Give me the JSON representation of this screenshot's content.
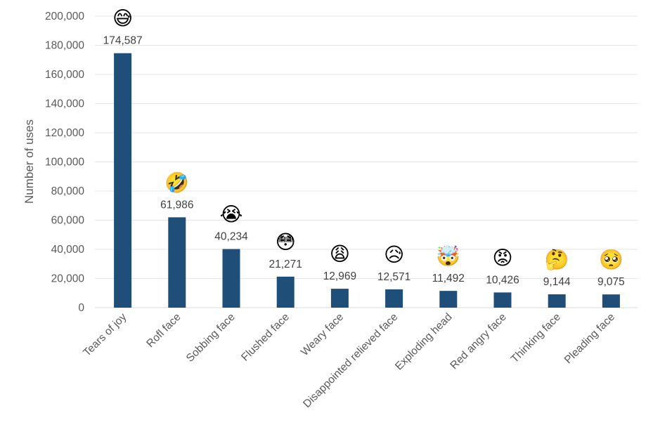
{
  "chart_data": {
    "type": "bar",
    "title": "",
    "xlabel": "",
    "ylabel": "Number of uses",
    "ylim": [
      0,
      200000
    ],
    "yticks": [
      0,
      20000,
      40000,
      60000,
      80000,
      100000,
      120000,
      140000,
      160000,
      180000,
      200000
    ],
    "ytick_labels": [
      "0",
      "20,000",
      "40,000",
      "60,000",
      "80,000",
      "100,000",
      "120,000",
      "140,000",
      "160,000",
      "180,000",
      "200,000"
    ],
    "grid": true,
    "bar_color": "#1f4e79",
    "categories": [
      "Tears of joy",
      "Rofl face",
      "Sobbing face",
      "Flushed face",
      "Weary face",
      "Disappointed relieved face",
      "Exploding head",
      "Red angry face",
      "Thinking face",
      "Pleading face"
    ],
    "values": [
      174587,
      61986,
      40234,
      21271,
      12969,
      12571,
      11492,
      10426,
      9144,
      9075
    ],
    "data_labels": [
      "174,587",
      "61,986",
      "40,234",
      "21,271",
      "12,969",
      "12,571",
      "11,492",
      "10,426",
      "9,144",
      "9,075"
    ],
    "emojis": [
      "😅",
      "🤣",
      "😭",
      "😳",
      "😩",
      "😥",
      "🤯",
      "😡",
      "🤔",
      "🥺"
    ]
  }
}
